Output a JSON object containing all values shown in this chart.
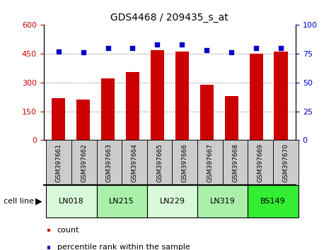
{
  "title": "GDS4468 / 209435_s_at",
  "samples": [
    "GSM397661",
    "GSM397662",
    "GSM397663",
    "GSM397664",
    "GSM397665",
    "GSM397666",
    "GSM397667",
    "GSM397668",
    "GSM397669",
    "GSM397670"
  ],
  "counts": [
    220,
    210,
    320,
    355,
    470,
    460,
    290,
    230,
    450,
    460
  ],
  "percentiles": [
    77,
    76,
    80,
    80,
    83,
    83,
    78,
    76,
    80,
    80
  ],
  "cell_lines": [
    {
      "name": "LN018",
      "start": 0,
      "end": 2,
      "color": "#d9f7d9"
    },
    {
      "name": "LN215",
      "start": 2,
      "end": 4,
      "color": "#aaf0aa"
    },
    {
      "name": "LN229",
      "start": 4,
      "end": 6,
      "color": "#d9f7d9"
    },
    {
      "name": "LN319",
      "start": 6,
      "end": 8,
      "color": "#aaf0aa"
    },
    {
      "name": "BS149",
      "start": 8,
      "end": 10,
      "color": "#33ee33"
    }
  ],
  "bar_color": "#cc0000",
  "dot_color": "#0000cc",
  "ylim_left": [
    0,
    600
  ],
  "ylim_right": [
    0,
    100
  ],
  "yticks_left": [
    0,
    150,
    300,
    450,
    600
  ],
  "yticks_right": [
    0,
    25,
    50,
    75,
    100
  ],
  "grid_values": [
    150,
    300,
    450
  ],
  "tick_label_color_left": "#cc0000",
  "tick_label_color_right": "#0000cc",
  "bar_width": 0.55,
  "legend_count_label": "count",
  "legend_pct_label": "percentile rank within the sample",
  "cell_line_label": "cell line",
  "gray_box_color": "#cccccc"
}
